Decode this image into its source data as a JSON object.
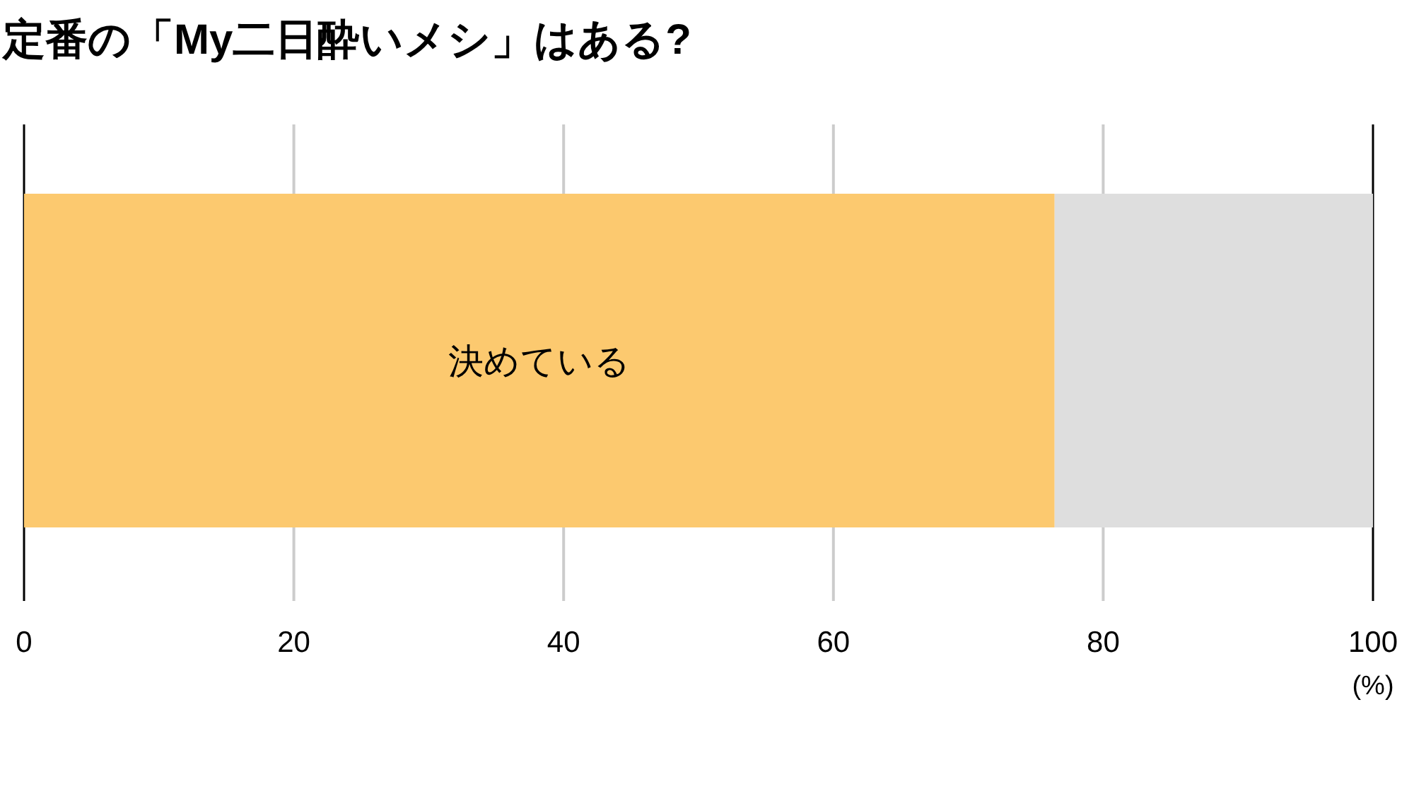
{
  "chart_data": {
    "type": "bar",
    "title": "定番の「My二日酔いメシ」はある?",
    "orientation": "horizontal",
    "stacked": true,
    "categories": [
      null
    ],
    "series": [
      {
        "name": "決めている",
        "color": "#fcc96f",
        "values": [
          76.4
        ]
      },
      {
        "color": "#dedede",
        "values": [
          23.6
        ]
      }
    ],
    "xlim": [
      0,
      100
    ],
    "xticks": [
      0,
      20,
      40,
      60,
      80,
      100
    ],
    "xlabel": "(%)",
    "grid": "x"
  }
}
